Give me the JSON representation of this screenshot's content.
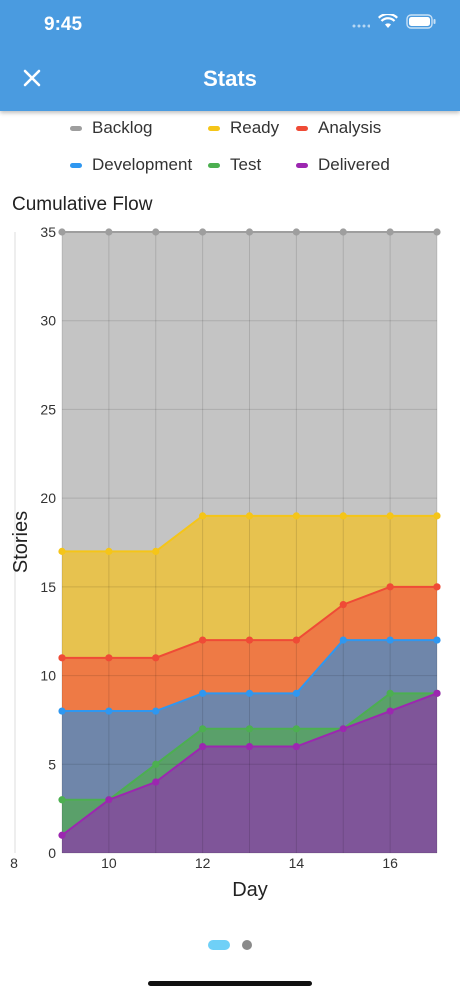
{
  "status_bar": {
    "time": "9:45"
  },
  "header": {
    "title": "Stats"
  },
  "colors": {
    "header_bg": "#4a9be0",
    "backlog": "#9e9e9e",
    "ready": "#f5c518",
    "analysis": "#ef4b36",
    "development": "#2f97f0",
    "test": "#4caf50",
    "delivered": "#9c27b0"
  },
  "chart_data": {
    "type": "area",
    "title": "Cumulative Flow",
    "xlabel": "Day",
    "ylabel": "Stories",
    "x": [
      9,
      10,
      11,
      12,
      13,
      14,
      15,
      16,
      17
    ],
    "xlim": [
      8,
      17
    ],
    "ylim": [
      0,
      35
    ],
    "x_ticks": [
      8,
      10,
      12,
      14,
      16
    ],
    "y_ticks": [
      0,
      5,
      10,
      15,
      20,
      25,
      30,
      35
    ],
    "grid": true,
    "legend_position": "top",
    "stacked_cumulative": true,
    "series": [
      {
        "name": "Backlog",
        "color": "#9e9e9e",
        "fill": "#c4c4c4",
        "values": [
          35,
          35,
          35,
          35,
          35,
          35,
          35,
          35,
          35
        ]
      },
      {
        "name": "Ready",
        "color": "#f5c518",
        "fill": "#e7c24f",
        "values": [
          17,
          17,
          17,
          19,
          19,
          19,
          19,
          19,
          19
        ]
      },
      {
        "name": "Analysis",
        "color": "#ef4b36",
        "fill": "#ee7a45",
        "values": [
          11,
          11,
          11,
          12,
          12,
          12,
          14,
          15,
          15
        ]
      },
      {
        "name": "Development",
        "color": "#2f97f0",
        "fill": "#6f86aa",
        "values": [
          8,
          8,
          8,
          9,
          9,
          9,
          12,
          12,
          12
        ]
      },
      {
        "name": "Test",
        "color": "#4caf50",
        "fill": "#5aa06a",
        "values": [
          3,
          3,
          5,
          7,
          7,
          7,
          7,
          9,
          9
        ]
      },
      {
        "name": "Delivered",
        "color": "#9c27b0",
        "fill": "#7f5599",
        "values": [
          1,
          3,
          4,
          6,
          6,
          6,
          7,
          8,
          9
        ]
      }
    ]
  },
  "pager": {
    "page_count": 2,
    "active_page": 1
  }
}
